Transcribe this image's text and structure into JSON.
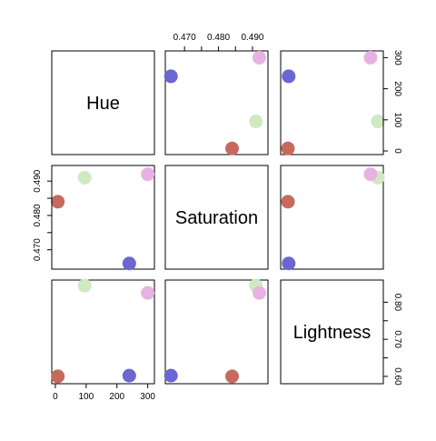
{
  "chart_data": {
    "type": "scatter",
    "variables": [
      {
        "name": "Hue",
        "range": [
          0,
          310
        ],
        "ticks": [
          0,
          100,
          200,
          300
        ],
        "tick_labels": [
          "0",
          "100",
          "200",
          "300"
        ]
      },
      {
        "name": "Saturation",
        "range": [
          0.4654,
          0.4935
        ],
        "ticks": [
          0.47,
          0.475,
          0.48,
          0.485,
          0.49
        ],
        "tick_labels": [
          "0.470",
          "",
          "0.480",
          "",
          "0.490"
        ]
      },
      {
        "name": "Lightness",
        "range": [
          0.59,
          0.85
        ],
        "ticks": [
          0.6,
          0.65,
          0.7,
          0.75,
          0.8
        ],
        "tick_labels": [
          "0.60",
          "",
          "0.70",
          "",
          "0.80"
        ]
      }
    ],
    "points": [
      {
        "hue": 8,
        "saturation": 0.484,
        "lightness": 0.6,
        "color": "#c8695e"
      },
      {
        "hue": 240,
        "saturation": 0.466,
        "lightness": 0.602,
        "color": "#6a66d2"
      },
      {
        "hue": 95,
        "saturation": 0.491,
        "lightness": 0.845,
        "color": "#cfe9c2"
      },
      {
        "hue": 300,
        "saturation": 0.492,
        "lightness": 0.825,
        "color": "#e7b2e2"
      }
    ],
    "axes": {
      "top": {
        "column": 1
      },
      "right": {
        "row": 0
      },
      "left": {
        "row": 1
      },
      "bottom": {
        "column": 0
      },
      "right2": {
        "row": 2
      }
    },
    "grid": false,
    "legend": "none"
  }
}
